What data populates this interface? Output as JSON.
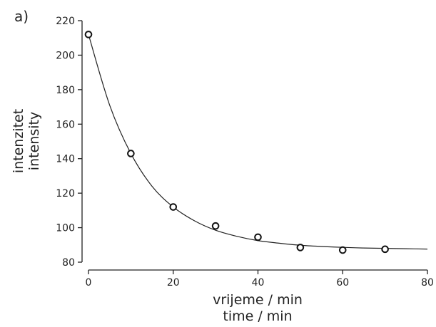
{
  "chart_data": {
    "type": "scatter",
    "panel_label": "a)",
    "xlabel_lines": [
      "vrijeme / min",
      "time / min"
    ],
    "ylabel_lines": [
      "intenzitet",
      "intensity"
    ],
    "xlim": [
      0,
      80
    ],
    "ylim": [
      80,
      220
    ],
    "x_ticks": [
      0,
      20,
      40,
      60,
      80
    ],
    "y_ticks": [
      80,
      100,
      120,
      140,
      160,
      180,
      200,
      220
    ],
    "grid": false,
    "series": [
      {
        "kind": "points",
        "marker": "open-circle",
        "x": [
          0,
          10,
          20,
          30,
          40,
          50,
          60,
          70
        ],
        "y": [
          212,
          143,
          112,
          101,
          94.5,
          88.5,
          87,
          87.5
        ]
      },
      {
        "kind": "fit-curve",
        "x": [
          0,
          5,
          10,
          15,
          20,
          25,
          30,
          35,
          40,
          45,
          50,
          55,
          60,
          65,
          70,
          75,
          80
        ],
        "y": [
          212,
          171,
          143,
          124,
          112,
          104,
          98.5,
          95,
          92.5,
          91,
          89.8,
          89.1,
          88.6,
          88.2,
          88,
          87.8,
          87.6
        ]
      }
    ]
  }
}
